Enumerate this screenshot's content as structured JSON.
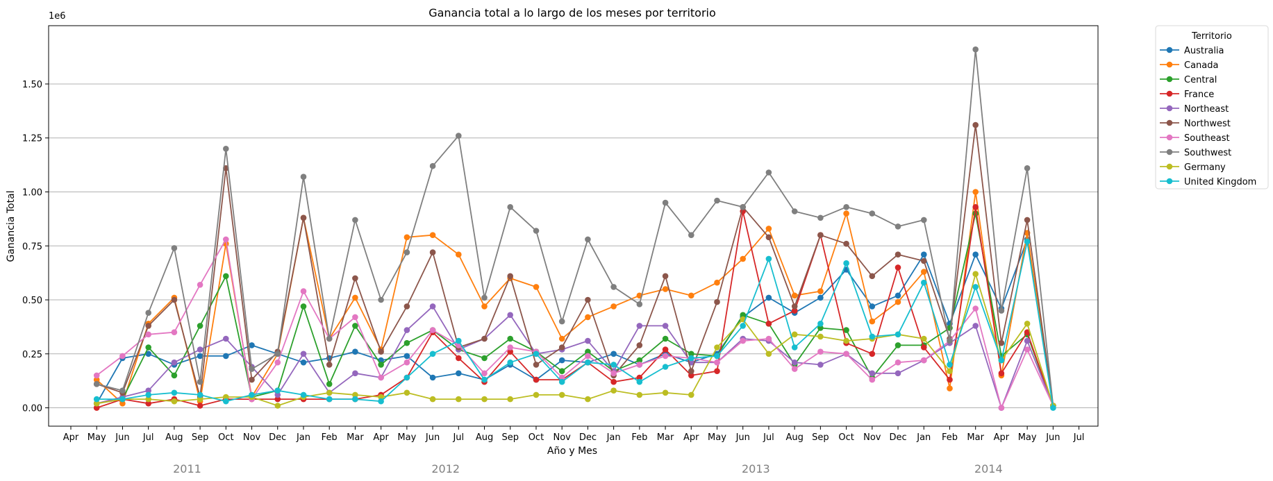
{
  "chart_data": {
    "type": "line",
    "title": "Ganancia total a lo largo de los meses por territorio",
    "xlabel": "Año y Mes",
    "ylabel": "Ganancia Total",
    "y_offset_label": "1e6",
    "ylim": [
      -0.085,
      1.77
    ],
    "yticks": [
      "0.00",
      "0.25",
      "0.50",
      "0.75",
      "1.00",
      "1.25",
      "1.50"
    ],
    "grid": "y",
    "legend_title": "Territorio",
    "legend_position": "outside-right",
    "x_tick_labels": [
      "Apr",
      "May",
      "Jun",
      "Jul",
      "Aug",
      "Sep",
      "Oct",
      "Nov",
      "Dec",
      "Jan",
      "Feb",
      "Mar",
      "Apr",
      "May",
      "Jun",
      "Jul",
      "Aug",
      "Sep",
      "Oct",
      "Nov",
      "Dec",
      "Jan",
      "Feb",
      "Mar",
      "Apr",
      "May",
      "Jun",
      "Jul",
      "Aug",
      "Sep",
      "Oct",
      "Nov",
      "Dec",
      "Jan",
      "Feb",
      "Mar",
      "Apr",
      "May",
      "Jun",
      "Jul"
    ],
    "year_labels": [
      {
        "label": "2011",
        "at_month_index": 4.5
      },
      {
        "label": "2012",
        "at_month_index": 14.5
      },
      {
        "label": "2013",
        "at_month_index": 26.5
      },
      {
        "label": "2014",
        "at_month_index": 35.5
      }
    ],
    "categories": [
      "May",
      "Jun",
      "Jul",
      "Aug",
      "Sep",
      "Oct",
      "Nov",
      "Dec",
      "Jan",
      "Feb",
      "Mar",
      "Apr",
      "May",
      "Jun",
      "Jul",
      "Aug",
      "Sep",
      "Oct",
      "Nov",
      "Dec",
      "Jan",
      "Feb",
      "Mar",
      "Apr",
      "May",
      "Jun",
      "Jul",
      "Aug",
      "Sep",
      "Oct",
      "Nov",
      "Dec",
      "Jan",
      "Feb",
      "Mar",
      "Apr",
      "May",
      "Jun"
    ],
    "series": [
      {
        "name": "Australia",
        "color": "#1f77b4",
        "values": [
          0.02,
          0.23,
          0.25,
          0.2,
          0.24,
          0.24,
          0.29,
          0.25,
          0.21,
          0.23,
          0.26,
          0.22,
          0.24,
          0.14,
          0.16,
          0.13,
          0.2,
          0.13,
          0.22,
          0.21,
          0.25,
          0.2,
          0.25,
          0.21,
          0.25,
          0.42,
          0.51,
          0.44,
          0.51,
          0.64,
          0.47,
          0.52,
          0.71,
          0.39,
          0.71,
          0.46,
          0.78,
          0.01
        ]
      },
      {
        "name": "Canada",
        "color": "#ff7f0e",
        "values": [
          0.13,
          0.02,
          0.39,
          0.51,
          0.03,
          0.76,
          0.05,
          0.25,
          0.88,
          0.32,
          0.51,
          0.27,
          0.79,
          0.8,
          0.71,
          0.47,
          0.6,
          0.56,
          0.32,
          0.42,
          0.47,
          0.52,
          0.55,
          0.52,
          0.58,
          0.69,
          0.83,
          0.52,
          0.54,
          0.9,
          0.4,
          0.49,
          0.63,
          0.09,
          1.0,
          0.15,
          0.81,
          0.01
        ]
      },
      {
        "name": "Central",
        "color": "#2ca02c",
        "values": [
          0.02,
          0.04,
          0.28,
          0.15,
          0.38,
          0.61,
          0.05,
          0.08,
          0.47,
          0.11,
          0.38,
          0.2,
          0.3,
          0.36,
          0.27,
          0.23,
          0.32,
          0.26,
          0.17,
          0.26,
          0.17,
          0.22,
          0.32,
          0.25,
          0.24,
          0.43,
          0.39,
          0.2,
          0.37,
          0.36,
          0.14,
          0.29,
          0.29,
          0.37,
          0.9,
          0.24,
          0.34,
          0.01
        ]
      },
      {
        "name": "France",
        "color": "#d62728",
        "values": [
          0.0,
          0.04,
          0.02,
          0.04,
          0.01,
          0.04,
          0.04,
          0.04,
          0.04,
          0.04,
          0.04,
          0.06,
          0.14,
          0.35,
          0.23,
          0.12,
          0.26,
          0.13,
          0.13,
          0.21,
          0.12,
          0.14,
          0.27,
          0.15,
          0.17,
          0.91,
          0.39,
          0.45,
          0.8,
          0.3,
          0.25,
          0.65,
          0.28,
          0.13,
          0.93,
          0.16,
          0.35,
          0.01
        ]
      },
      {
        "name": "Northeast",
        "color": "#9467bd",
        "values": [
          0.02,
          0.05,
          0.08,
          0.21,
          0.27,
          0.32,
          0.19,
          0.06,
          0.25,
          0.07,
          0.16,
          0.14,
          0.36,
          0.47,
          0.27,
          0.32,
          0.43,
          0.25,
          0.27,
          0.31,
          0.17,
          0.38,
          0.38,
          0.21,
          0.21,
          0.32,
          0.31,
          0.21,
          0.2,
          0.25,
          0.16,
          0.16,
          0.22,
          0.3,
          0.38,
          0.0,
          0.31,
          0.01
        ]
      },
      {
        "name": "Northwest",
        "color": "#8c564b",
        "values": [
          0.11,
          0.07,
          0.38,
          0.5,
          0.05,
          1.11,
          0.13,
          0.26,
          0.88,
          0.2,
          0.6,
          0.26,
          0.47,
          0.72,
          0.28,
          0.32,
          0.61,
          0.2,
          0.28,
          0.5,
          0.15,
          0.29,
          0.61,
          0.17,
          0.49,
          0.93,
          0.79,
          0.47,
          0.8,
          0.76,
          0.61,
          0.71,
          0.68,
          0.32,
          1.31,
          0.3,
          0.87,
          0.01
        ]
      },
      {
        "name": "Southeast",
        "color": "#e377c2",
        "values": [
          0.15,
          0.24,
          0.34,
          0.35,
          0.57,
          0.78,
          0.04,
          0.21,
          0.54,
          0.32,
          0.42,
          0.14,
          0.21,
          0.36,
          0.29,
          0.16,
          0.28,
          0.26,
          0.14,
          0.24,
          0.16,
          0.2,
          0.24,
          0.23,
          0.21,
          0.31,
          0.32,
          0.18,
          0.26,
          0.25,
          0.13,
          0.21,
          0.22,
          0.31,
          0.46,
          0.0,
          0.27,
          0.01
        ]
      },
      {
        "name": "Southwest",
        "color": "#7f7f7f",
        "values": [
          0.11,
          0.08,
          0.44,
          0.74,
          0.12,
          1.2,
          0.18,
          0.25,
          1.07,
          0.32,
          0.87,
          0.5,
          0.72,
          1.12,
          1.26,
          0.51,
          0.93,
          0.82,
          0.4,
          0.78,
          0.56,
          0.48,
          0.95,
          0.8,
          0.96,
          0.93,
          1.09,
          0.91,
          0.88,
          0.93,
          0.9,
          0.84,
          0.87,
          0.31,
          1.66,
          0.45,
          1.11,
          0.01
        ]
      },
      {
        "name": "Germany",
        "color": "#bcbd22",
        "values": [
          0.02,
          0.04,
          0.04,
          0.03,
          0.04,
          0.05,
          0.05,
          0.01,
          0.05,
          0.07,
          0.06,
          0.05,
          0.07,
          0.04,
          0.04,
          0.04,
          0.04,
          0.06,
          0.06,
          0.04,
          0.08,
          0.06,
          0.07,
          0.06,
          0.28,
          0.41,
          0.25,
          0.34,
          0.33,
          0.31,
          0.32,
          0.34,
          0.32,
          0.17,
          0.62,
          0.22,
          0.39,
          0.01
        ]
      },
      {
        "name": "United Kingdom",
        "color": "#17becf",
        "values": [
          0.04,
          0.04,
          0.06,
          0.07,
          0.06,
          0.03,
          0.06,
          0.08,
          0.06,
          0.04,
          0.04,
          0.03,
          0.14,
          0.25,
          0.31,
          0.13,
          0.21,
          0.25,
          0.12,
          0.21,
          0.2,
          0.12,
          0.19,
          0.23,
          0.24,
          0.38,
          0.69,
          0.28,
          0.39,
          0.67,
          0.33,
          0.34,
          0.58,
          0.2,
          0.56,
          0.22,
          0.77,
          0.0
        ]
      }
    ]
  }
}
